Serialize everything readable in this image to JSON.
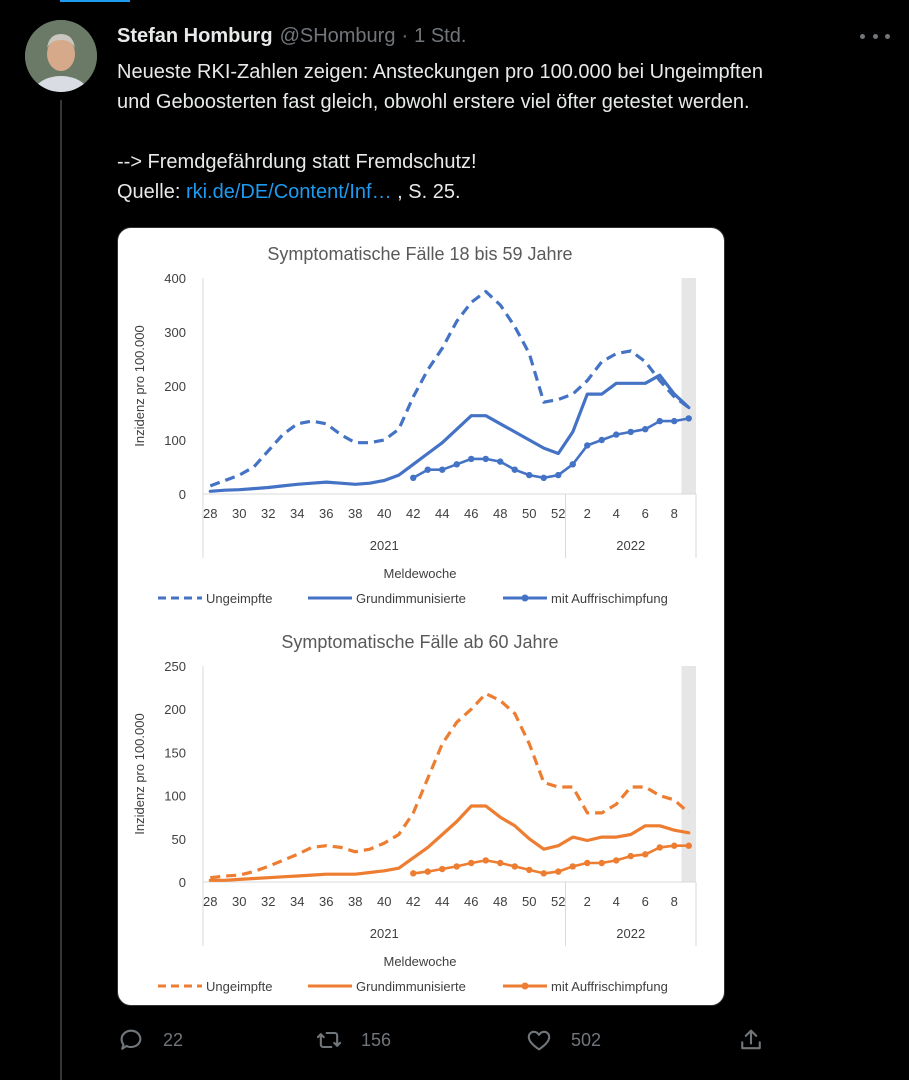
{
  "tweet": {
    "author_name": "Stefan Homburg",
    "handle": "@SHomburg",
    "separator": "·",
    "time": "1 Std.",
    "text_line1": "Neueste RKI-Zahlen zeigen: Ansteckungen pro 100.000 bei Ungeimpften",
    "text_line2": "und Geboosterten fast gleich, obwohl erstere viel öfter getestet werden.",
    "text_line3": "--> Fremdgefährdung statt Fremdschutz!",
    "source_prefix": "Quelle: ",
    "source_link": "rki.de/DE/Content/Inf…",
    "source_suffix": " , S. 25."
  },
  "actions": {
    "reply_count": "22",
    "retweet_count": "156",
    "like_count": "502"
  },
  "icons": [
    "more-icon",
    "reply-icon",
    "retweet-icon",
    "like-icon",
    "share-icon"
  ],
  "colors": {
    "accent": "#1d9bf0",
    "blue_series": "#4472c4",
    "orange_series": "#ed7d31"
  },
  "chart_data": [
    {
      "type": "line",
      "title": "Symptomatische Fälle 18 bis 59 Jahre",
      "xlabel": "Meldewoche",
      "ylabel": "Inzidenz pro 100.000",
      "x_ticks": [
        "28",
        "30",
        "32",
        "34",
        "36",
        "38",
        "40",
        "42",
        "44",
        "46",
        "48",
        "50",
        "52",
        "2",
        "4",
        "6",
        "8"
      ],
      "x_groups": [
        "2021",
        "2022"
      ],
      "ylim": [
        0,
        400
      ],
      "y_ticks": [
        "0",
        "100",
        "200",
        "300",
        "400"
      ],
      "weeks": [
        "28",
        "29",
        "30",
        "31",
        "32",
        "33",
        "34",
        "35",
        "36",
        "37",
        "38",
        "39",
        "40",
        "41",
        "42",
        "43",
        "44",
        "45",
        "46",
        "47",
        "48",
        "49",
        "50",
        "51",
        "52",
        "1",
        "2",
        "3",
        "4",
        "5",
        "6",
        "7",
        "8",
        "9"
      ],
      "series": [
        {
          "name": "Ungeimpfte",
          "style": "dashed",
          "values": [
            15,
            25,
            35,
            50,
            80,
            110,
            130,
            135,
            130,
            110,
            95,
            95,
            100,
            120,
            180,
            230,
            270,
            320,
            355,
            375,
            350,
            310,
            260,
            170,
            175,
            185,
            210,
            245,
            260,
            265,
            245,
            210,
            180,
            160
          ]
        },
        {
          "name": "Grundimmunisierte",
          "style": "solid",
          "values": [
            5,
            7,
            8,
            10,
            12,
            15,
            18,
            20,
            22,
            20,
            18,
            20,
            25,
            35,
            55,
            75,
            95,
            120,
            145,
            145,
            130,
            115,
            100,
            85,
            75,
            115,
            185,
            185,
            205,
            205,
            205,
            220,
            185,
            160
          ]
        },
        {
          "name": "mit Auffrischimpfung",
          "style": "markers",
          "values": [
            null,
            null,
            null,
            null,
            null,
            null,
            null,
            null,
            null,
            null,
            null,
            null,
            null,
            null,
            30,
            45,
            45,
            55,
            65,
            65,
            60,
            45,
            35,
            30,
            35,
            55,
            90,
            100,
            110,
            115,
            120,
            135,
            135,
            140
          ]
        }
      ],
      "shaded_last_week": true
    },
    {
      "type": "line",
      "title": "Symptomatische Fälle ab 60 Jahre",
      "xlabel": "Meldewoche",
      "ylabel": "Inzidenz pro 100.000",
      "x_ticks": [
        "28",
        "30",
        "32",
        "34",
        "36",
        "38",
        "40",
        "42",
        "44",
        "46",
        "48",
        "50",
        "52",
        "2",
        "4",
        "6",
        "8"
      ],
      "x_groups": [
        "2021",
        "2022"
      ],
      "ylim": [
        0,
        250
      ],
      "y_ticks": [
        "0",
        "50",
        "100",
        "150",
        "200",
        "250"
      ],
      "weeks": [
        "28",
        "29",
        "30",
        "31",
        "32",
        "33",
        "34",
        "35",
        "36",
        "37",
        "38",
        "39",
        "40",
        "41",
        "42",
        "43",
        "44",
        "45",
        "46",
        "47",
        "48",
        "49",
        "50",
        "51",
        "52",
        "1",
        "2",
        "3",
        "4",
        "5",
        "6",
        "7",
        "8",
        "9"
      ],
      "series": [
        {
          "name": "Ungeimpfte",
          "style": "dashed",
          "values": [
            5,
            7,
            8,
            12,
            18,
            25,
            32,
            40,
            42,
            40,
            35,
            38,
            45,
            55,
            80,
            120,
            160,
            185,
            200,
            218,
            210,
            195,
            160,
            115,
            110,
            110,
            80,
            80,
            90,
            110,
            110,
            100,
            95,
            80
          ]
        },
        {
          "name": "Grundimmunisierte",
          "style": "solid",
          "values": [
            2,
            2,
            3,
            4,
            5,
            6,
            7,
            8,
            9,
            9,
            9,
            11,
            13,
            16,
            28,
            40,
            55,
            70,
            88,
            88,
            75,
            65,
            50,
            38,
            42,
            52,
            48,
            52,
            52,
            55,
            65,
            65,
            60,
            57
          ]
        },
        {
          "name": "mit Auffrischimpfung",
          "style": "markers",
          "values": [
            null,
            null,
            null,
            null,
            null,
            null,
            null,
            null,
            null,
            null,
            null,
            null,
            null,
            null,
            10,
            12,
            15,
            18,
            22,
            25,
            22,
            18,
            14,
            10,
            12,
            18,
            22,
            22,
            25,
            30,
            32,
            40,
            42,
            42
          ]
        }
      ],
      "shaded_last_week": true
    }
  ]
}
